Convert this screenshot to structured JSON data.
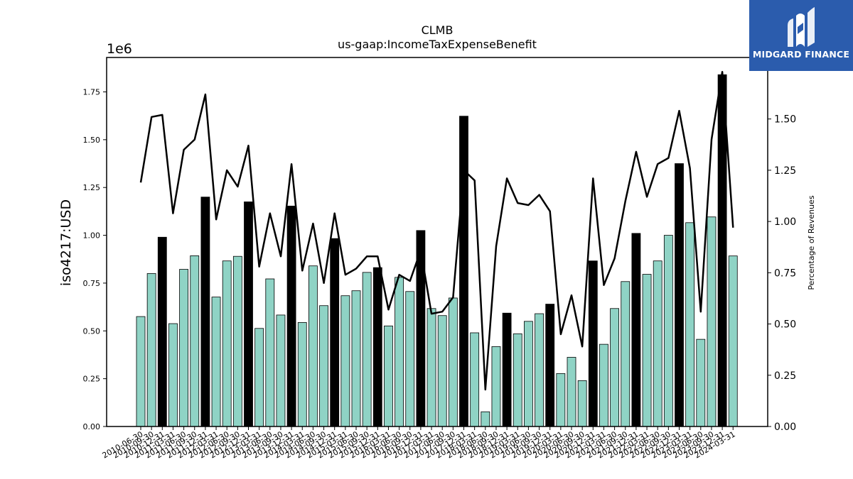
{
  "chart_data": {
    "type": "bar",
    "title": "CLMB",
    "subtitle": "us-gaap:IncomeTaxExpenseBenefit",
    "ylabel": "iso4217:USD",
    "y_offset_label": "1e6",
    "y2label": "Percentage of Revenues",
    "ylim": [
      0,
      1930000
    ],
    "y2lim": [
      0,
      1.8
    ],
    "yticks": [
      "0.00",
      "0.25",
      "0.50",
      "0.75",
      "1.00",
      "1.25",
      "1.50",
      "1.75"
    ],
    "y2ticks": [
      "0.00",
      "0.25",
      "0.50",
      "0.75",
      "1.00",
      "1.25",
      "1.50"
    ],
    "colors": {
      "quarter_bar": "#8fd3c5",
      "annual_bar": "#000000",
      "line": "#000000"
    },
    "categories": [
      "2010-06-30",
      "2010-09-30",
      "2010-12-31",
      "2011-03-31",
      "2011-06-30",
      "2011-09-30",
      "2011-12-31",
      "2012-03-31",
      "2012-06-30",
      "2012-09-30",
      "2012-12-31",
      "2013-03-31",
      "2013-06-30",
      "2013-09-30",
      "2013-12-31",
      "2014-03-31",
      "2014-06-30",
      "2014-09-30",
      "2014-12-31",
      "2015-03-31",
      "2015-06-30",
      "2015-09-30",
      "2015-12-31",
      "2016-03-31",
      "2016-06-30",
      "2016-09-30",
      "2016-12-31",
      "2017-03-31",
      "2017-06-30",
      "2017-09-30",
      "2017-12-31",
      "2018-03-31",
      "2018-06-30",
      "2018-09-30",
      "2018-12-31",
      "2019-03-31",
      "2019-06-30",
      "2019-09-30",
      "2019-12-31",
      "2020-03-31",
      "2020-06-30",
      "2020-09-30",
      "2020-12-31",
      "2021-03-31",
      "2021-06-30",
      "2021-09-30",
      "2021-12-31",
      "2022-03-31",
      "2022-06-30",
      "2022-09-30",
      "2022-12-31",
      "2023-03-31",
      "2023-06-30",
      "2023-09-30",
      "2023-12-31",
      "2024-03-31"
    ],
    "visible_tick_labels": [
      "2010-06-30",
      "2010-09-30",
      "2010-12-31",
      "2011-03-31",
      "2011-06-30",
      "2011-09-30",
      "2011-12-31",
      "2012-03-31",
      "2012-06-30",
      "2012-09-30",
      "2012-12-31",
      "2013-03-31",
      "2013-06-30",
      "2013-09-30",
      "2013-12-31",
      "2014-03-31",
      "2014-06-30",
      "2014-09-30",
      "2014-12-31",
      "2015-03-31",
      "2015-06-30",
      "2015-09-30",
      "2015-12-31",
      "2016-03-31",
      "2016-06-30",
      "2016-09-30",
      "2016-12-31",
      "2017-03-31",
      "2017-06-30",
      "2017-09-30",
      "2017-12-31",
      "2018-03-31",
      "2018-06-30",
      "2018-09-30",
      "2018-12-31",
      "2019-03-31",
      "2019-06-30",
      "2019-09-30",
      "2019-12-31",
      "2020-03-31",
      "2020-06-30",
      "2020-09-30",
      "2020-12-31",
      "2021-03-31",
      "2021-06-30",
      "2021-09-30",
      "2021-12-31",
      "2022-03-31",
      "2022-06-30",
      "2022-09-30",
      "2022-12-31",
      "2023-03-31",
      "2023-06-30",
      "2023-09-30",
      "2023-12-31",
      "2024-03-31"
    ],
    "values": [
      575000,
      800000,
      990000,
      538000,
      822000,
      893000,
      1200000,
      677000,
      866000,
      890000,
      1175000,
      513000,
      772000,
      583000,
      1153000,
      544000,
      840000,
      632000,
      983000,
      684000,
      710000,
      806000,
      831000,
      526000,
      780000,
      706000,
      1025000,
      617000,
      580000,
      672000,
      1623000,
      490000,
      77000,
      418000,
      593000,
      485000,
      550000,
      590000,
      640000,
      277000,
      362000,
      240000,
      866000,
      430000,
      617000,
      758000,
      1010000,
      796000,
      866000,
      1000000,
      1375000,
      1066000,
      456000,
      1096000,
      1840000,
      892000
    ],
    "annual": [
      false,
      false,
      true,
      false,
      false,
      false,
      true,
      false,
      false,
      false,
      true,
      false,
      false,
      false,
      true,
      false,
      false,
      false,
      true,
      false,
      false,
      false,
      true,
      false,
      false,
      false,
      true,
      false,
      false,
      false,
      true,
      false,
      false,
      false,
      true,
      false,
      false,
      false,
      true,
      false,
      false,
      false,
      true,
      false,
      false,
      false,
      true,
      false,
      false,
      false,
      true,
      false,
      false,
      false,
      true,
      false
    ],
    "line_values": [
      1.19,
      1.51,
      1.52,
      1.04,
      1.35,
      1.4,
      1.62,
      1.01,
      1.25,
      1.17,
      1.37,
      0.78,
      1.04,
      0.83,
      1.28,
      0.76,
      0.99,
      0.7,
      1.04,
      0.74,
      0.77,
      0.83,
      0.83,
      0.57,
      0.74,
      0.71,
      0.86,
      0.55,
      0.56,
      0.63,
      1.25,
      1.2,
      0.18,
      0.88,
      1.21,
      1.09,
      1.08,
      1.13,
      1.05,
      0.45,
      0.64,
      0.39,
      1.21,
      0.69,
      0.82,
      1.1,
      1.34,
      1.12,
      1.28,
      1.31,
      1.54,
      1.26,
      0.56,
      1.4,
      1.73,
      0.97
    ],
    "grid": false
  },
  "branding": {
    "name": "MIDGARD FINANCE"
  }
}
